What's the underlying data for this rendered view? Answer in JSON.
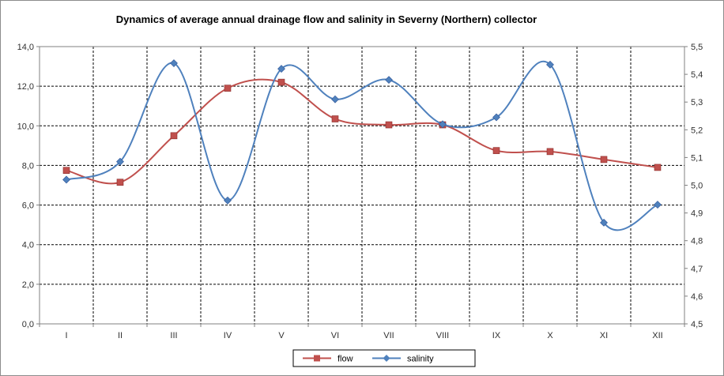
{
  "chart_data": {
    "type": "line",
    "title": "Dynamics  of average annual drainage flow and salinity in Severny (Northern) collector",
    "categories": [
      "I",
      "II",
      "III",
      "IV",
      "V",
      "VI",
      "VII",
      "VIII",
      "IX",
      "X",
      "XI",
      "XII"
    ],
    "y_left": {
      "min": 0,
      "max": 14,
      "step": 2,
      "ticks": [
        "0,0",
        "2,0",
        "4,0",
        "6,0",
        "8,0",
        "10,0",
        "12,0",
        "14,0"
      ]
    },
    "y_right": {
      "min": 4.5,
      "max": 5.5,
      "step": 0.1,
      "ticks": [
        "4,5",
        "4,6",
        "4,7",
        "4,8",
        "4,9",
        "5,0",
        "5,1",
        "5,2",
        "5,3",
        "5,4",
        "5,5"
      ]
    },
    "series": [
      {
        "name": "flow",
        "axis": "left",
        "color": "#c0504d",
        "marker": "square",
        "values": [
          7.75,
          7.15,
          9.5,
          11.9,
          12.2,
          10.35,
          10.05,
          10.05,
          8.75,
          8.7,
          8.3,
          7.9
        ]
      },
      {
        "name": "salinity",
        "axis": "right",
        "color": "#4f81bd",
        "marker": "diamond",
        "values": [
          5.02,
          5.085,
          5.44,
          4.945,
          5.42,
          5.31,
          5.38,
          5.22,
          5.245,
          5.435,
          4.865,
          4.93
        ]
      }
    ],
    "grid": true,
    "legend_position": "bottom"
  }
}
